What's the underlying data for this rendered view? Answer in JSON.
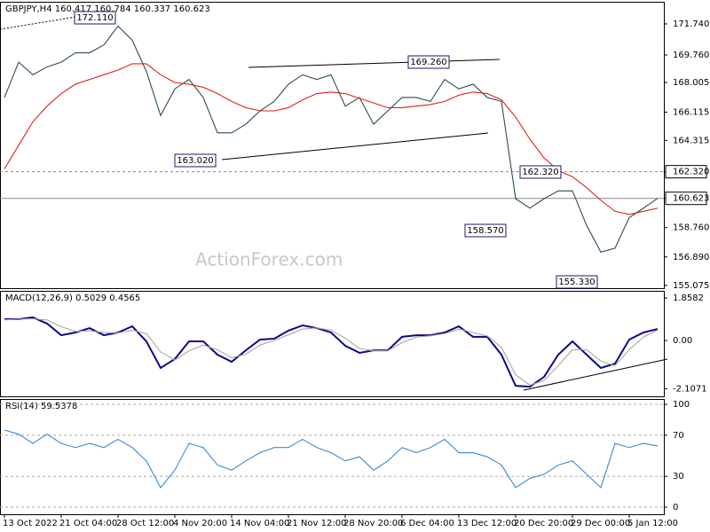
{
  "header": "GBPJPY,H4  160.417 160.784 160.337 160.623",
  "watermark": "ActionForex.com",
  "chart_data": [
    {
      "type": "line",
      "title": "GBPJPY,H4  160.417 160.784 160.337 160.623",
      "ylim": [
        154.9,
        173.15
      ],
      "yticks": [
        {
          "value": 171.74,
          "label": "171.740"
        },
        {
          "value": 169.76,
          "label": "169.760"
        },
        168.005,
        166.115,
        164.315,
        {
          "value": 162.32,
          "label": "162.320",
          "line": "dashed",
          "boxed": true
        },
        {
          "value": 160.623,
          "label": "160.623",
          "line": "solid",
          "boxed": true
        },
        {
          "value": 158.76,
          "label": "158.760"
        },
        {
          "value": 156.89,
          "label": "156.890"
        },
        155.075
      ],
      "annotations": [
        "172.110",
        "169.260",
        "163.020",
        "162.320",
        "158.570",
        "155.330"
      ],
      "series": [
        {
          "name": "GBPJPY",
          "color": "#2f4f4f",
          "values": [
            167.05,
            169.3,
            168.5,
            169.0,
            169.3,
            169.9,
            169.9,
            170.4,
            171.6,
            170.7,
            168.7,
            165.9,
            167.6,
            168.2,
            167.05,
            164.8,
            164.8,
            165.35,
            166.2,
            166.8,
            167.9,
            168.5,
            168.2,
            168.5,
            166.5,
            167.05,
            165.35,
            166.2,
            167.05,
            167.05,
            166.8,
            168.2,
            167.6,
            167.9,
            167.05,
            166.8,
            160.6,
            160.0,
            160.6,
            161.1,
            161.1,
            158.9,
            157.2,
            157.45,
            159.4,
            160.0,
            160.623
          ]
        },
        {
          "name": "MA",
          "color": "#e0201b",
          "values": [
            162.5,
            164.0,
            165.5,
            166.5,
            167.3,
            167.9,
            168.2,
            168.5,
            168.8,
            169.2,
            169.2,
            168.5,
            168.0,
            167.9,
            167.7,
            167.3,
            166.8,
            166.4,
            166.2,
            166.2,
            166.4,
            166.9,
            167.3,
            167.4,
            167.3,
            167.0,
            166.7,
            166.4,
            166.4,
            166.5,
            166.6,
            166.8,
            167.2,
            167.4,
            167.3,
            166.9,
            165.8,
            164.4,
            163.2,
            162.4,
            162.0,
            161.3,
            160.5,
            159.8,
            159.6,
            159.8,
            160.0
          ]
        }
      ]
    },
    {
      "type": "line",
      "title": "MACD(12,26,9) 0.5029 0.4565",
      "ylim": [
        -2.44,
        2.17
      ],
      "yticks": [
        1.8582,
        {
          "value": 0,
          "label": "0.00"
        },
        -2.1071
      ],
      "series": [
        {
          "name": "MACD",
          "color": "#0a0a8a",
          "values": [
            0.93,
            0.93,
            1.01,
            0.74,
            0.23,
            0.35,
            0.54,
            0.23,
            0.35,
            0.62,
            -0.04,
            -1.2,
            -0.81,
            -0.04,
            -0.04,
            -0.62,
            -0.93,
            -0.43,
            0.04,
            0.08,
            0.43,
            0.66,
            0.54,
            0.35,
            -0.23,
            -0.54,
            -0.43,
            -0.43,
            0.16,
            0.23,
            0.23,
            0.35,
            0.62,
            0.16,
            0.16,
            -0.62,
            -1.98,
            -2.02,
            -1.59,
            -0.62,
            -0.04,
            -0.62,
            -1.2,
            -1.01,
            0.04,
            0.35,
            0.5029
          ]
        },
        {
          "name": "Signal",
          "color": "#a8a8a8",
          "values": [
            0.9,
            0.93,
            0.95,
            0.9,
            0.6,
            0.4,
            0.42,
            0.35,
            0.33,
            0.45,
            0.3,
            -0.5,
            -0.85,
            -0.45,
            -0.2,
            -0.4,
            -0.75,
            -0.6,
            -0.2,
            0.0,
            0.25,
            0.5,
            0.55,
            0.45,
            0.1,
            -0.35,
            -0.45,
            -0.45,
            -0.1,
            0.15,
            0.2,
            0.3,
            0.5,
            0.35,
            0.2,
            -0.3,
            -1.5,
            -1.95,
            -1.75,
            -1.1,
            -0.4,
            -0.4,
            -0.9,
            -1.1,
            -0.4,
            0.15,
            0.4565
          ]
        }
      ]
    },
    {
      "type": "line",
      "title": "RSI(14) 59.5378",
      "ylim": [
        -6.9,
        105.2
      ],
      "yticks": [
        100,
        70,
        30,
        0
      ],
      "grid": true,
      "categories": [
        "13 Oct 2022",
        null,
        null,
        null,
        "21 Oct 04:00",
        null,
        null,
        null,
        "28 Oct 12:00",
        null,
        null,
        null,
        "4 Nov 20:00",
        null,
        null,
        null,
        "14 Nov 04:00",
        null,
        null,
        null,
        "21 Nov 12:00",
        null,
        null,
        null,
        "28 Nov 20:00",
        null,
        null,
        null,
        "6 Dec 04:00",
        null,
        null,
        null,
        "13 Dec 12:00",
        null,
        null,
        null,
        "20 Dec 20:00",
        null,
        null,
        null,
        "29 Dec 00:00",
        null,
        null,
        null,
        "5 Jan 12:00",
        null,
        null
      ],
      "series": [
        {
          "name": "RSI",
          "color": "#3a8ad6",
          "values": [
            75,
            71,
            62,
            71,
            62,
            58,
            62,
            58,
            66,
            58,
            45,
            19,
            36,
            62,
            58,
            41,
            36,
            45,
            53,
            58,
            58,
            66,
            58,
            53,
            45,
            49,
            36,
            45,
            58,
            53,
            58,
            66,
            53,
            53,
            49,
            41,
            19,
            28,
            32,
            41,
            45,
            32,
            19,
            62,
            58,
            62,
            59.5378
          ]
        }
      ]
    }
  ]
}
